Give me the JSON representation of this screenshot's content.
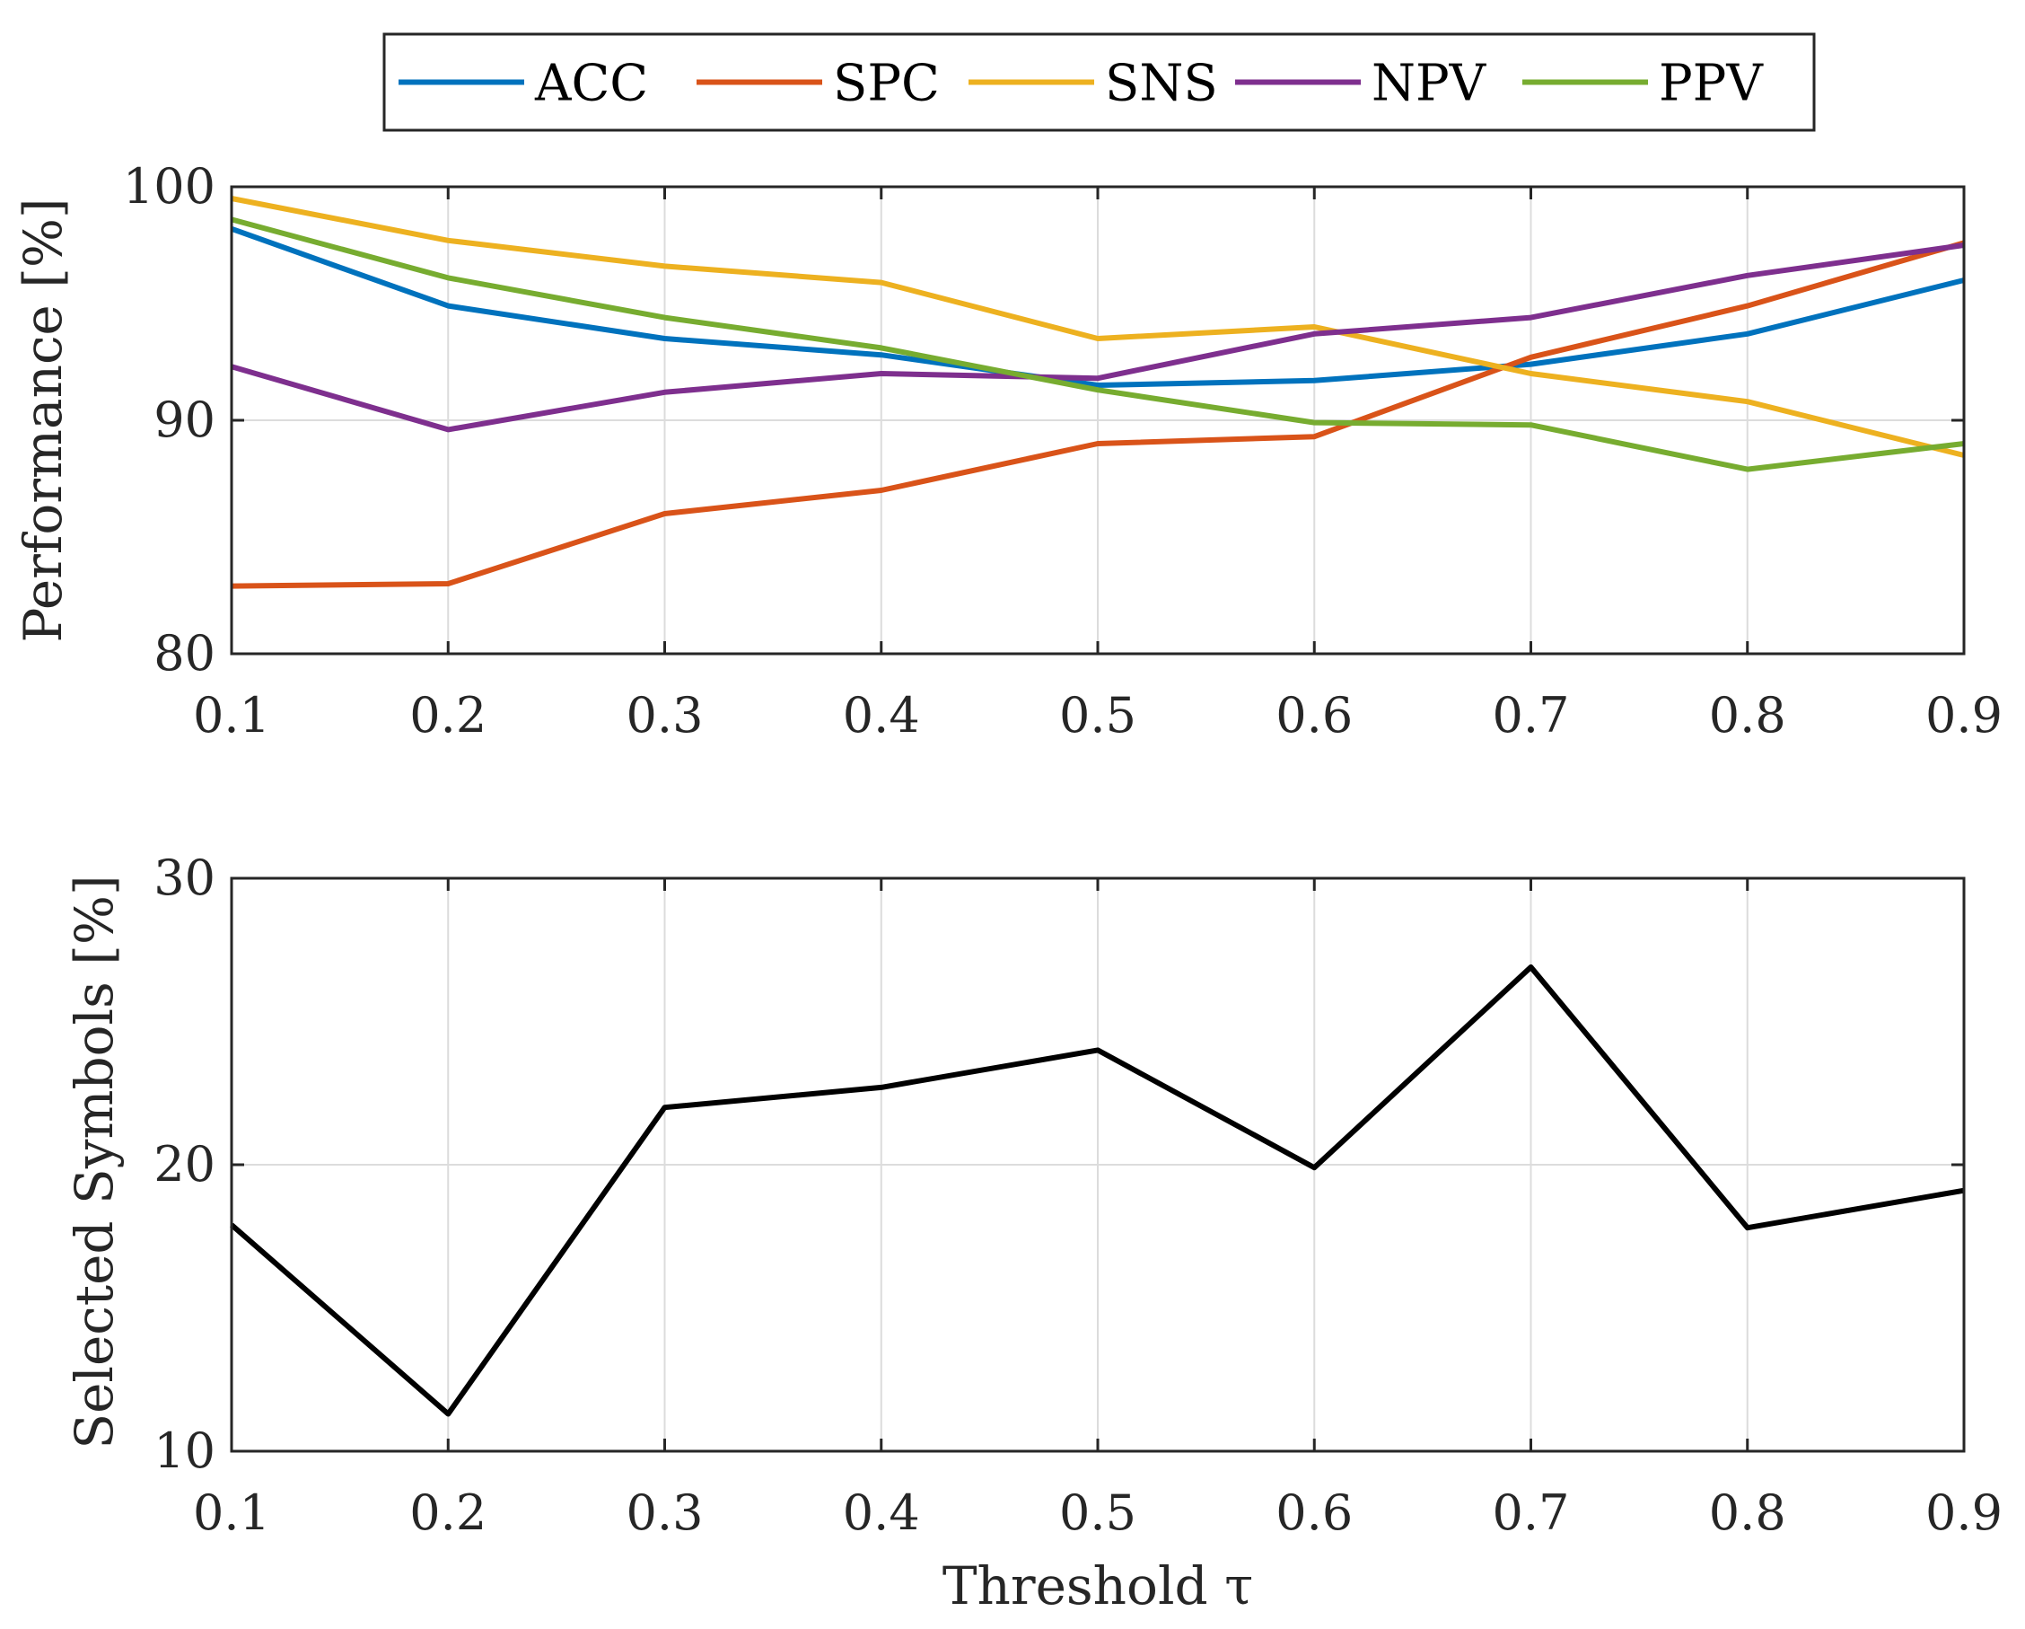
{
  "chart_data": [
    {
      "type": "line",
      "title": "",
      "xlabel": "",
      "ylabel": "Performance [%]",
      "x": [
        0.1,
        0.2,
        0.3,
        0.4,
        0.5,
        0.6,
        0.7,
        0.8,
        0.9
      ],
      "x_tick_labels": [
        "0.1",
        "0.2",
        "0.3",
        "0.4",
        "0.5",
        "0.6",
        "0.7",
        "0.8",
        "0.9"
      ],
      "xlim": [
        0.1,
        0.9
      ],
      "ylim": [
        80,
        100
      ],
      "y_ticks": [
        80,
        90,
        100
      ],
      "y_tick_labels": [
        "80",
        "90",
        "100"
      ],
      "grid": true,
      "legend": "top-outside, horizontal",
      "series": [
        {
          "name": "ACC",
          "color": "#0072BD",
          "values": [
            98.2,
            94.9,
            93.5,
            92.8,
            91.5,
            91.7,
            92.4,
            93.7,
            96.0
          ]
        },
        {
          "name": "SPC",
          "color": "#D95319",
          "values": [
            82.9,
            83.0,
            86.0,
            87.0,
            89.0,
            89.3,
            92.7,
            94.9,
            97.6
          ]
        },
        {
          "name": "SNS",
          "color": "#EDB120",
          "values": [
            99.5,
            97.7,
            96.6,
            95.9,
            93.5,
            94.0,
            92.0,
            90.8,
            88.5
          ]
        },
        {
          "name": "NPV",
          "color": "#7E2F8E",
          "values": [
            92.3,
            89.6,
            91.2,
            92.0,
            91.8,
            93.7,
            94.4,
            96.2,
            97.5
          ]
        },
        {
          "name": "PPV",
          "color": "#77AC30",
          "values": [
            98.6,
            96.1,
            94.4,
            93.1,
            91.3,
            89.9,
            89.8,
            87.9,
            89.0
          ]
        }
      ]
    },
    {
      "type": "line",
      "title": "",
      "xlabel": "Threshold τ",
      "ylabel": "Selected Symbols [%]",
      "x": [
        0.1,
        0.2,
        0.3,
        0.4,
        0.5,
        0.6,
        0.7,
        0.8,
        0.9
      ],
      "x_tick_labels": [
        "0.1",
        "0.2",
        "0.3",
        "0.4",
        "0.5",
        "0.6",
        "0.7",
        "0.8",
        "0.9"
      ],
      "xlim": [
        0.1,
        0.9
      ],
      "ylim": [
        10,
        30
      ],
      "y_ticks": [
        10,
        20,
        30
      ],
      "y_tick_labels": [
        "10",
        "20",
        "30"
      ],
      "grid": true,
      "series": [
        {
          "name": "Selected Symbols",
          "color": "#000000",
          "values": [
            17.9,
            11.3,
            22.0,
            22.7,
            24.0,
            19.9,
            26.9,
            17.8,
            19.1
          ]
        }
      ]
    }
  ]
}
